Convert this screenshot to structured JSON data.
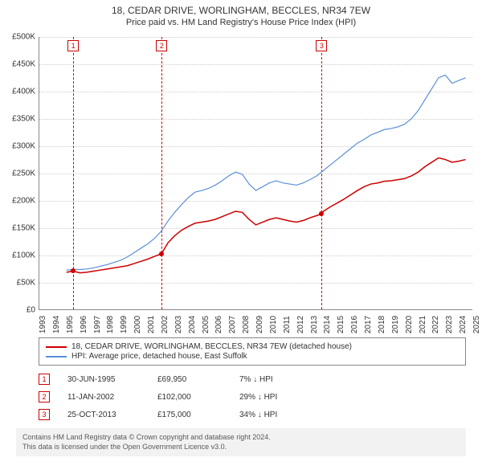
{
  "title": "18, CEDAR DRIVE, WORLINGHAM, BECCLES, NR34 7EW",
  "subtitle": "Price paid vs. HM Land Registry's House Price Index (HPI)",
  "chart": {
    "type": "line",
    "background_color": "#ffffff",
    "grid_color": "#cccccc",
    "axis_color": "#888888",
    "ylabel_prefix": "£",
    "ylim": [
      0,
      500000
    ],
    "ytick_step": 50000,
    "yticks": [
      "£0",
      "£50K",
      "£100K",
      "£150K",
      "£200K",
      "£250K",
      "£300K",
      "£350K",
      "£400K",
      "£450K",
      "£500K"
    ],
    "xlim": [
      1993,
      2025
    ],
    "xticks": [
      1993,
      1994,
      1995,
      1996,
      1997,
      1998,
      1999,
      2000,
      2001,
      2002,
      2003,
      2004,
      2005,
      2006,
      2007,
      2008,
      2009,
      2010,
      2011,
      2012,
      2013,
      2014,
      2015,
      2016,
      2017,
      2018,
      2019,
      2020,
      2021,
      2022,
      2023,
      2024,
      2025
    ],
    "series": [
      {
        "id": "price_paid",
        "label": "18, CEDAR DRIVE, WORLINGHAM, BECCLES, NR34 7EW (detached house)",
        "color": "#cc0000",
        "line_width": 1.5,
        "marker_color": "#cc0000",
        "marker_size": 6,
        "event_points": [
          {
            "x": 1995.5,
            "y": 69950
          },
          {
            "x": 2002.03,
            "y": 102000
          },
          {
            "x": 2013.82,
            "y": 175000
          }
        ],
        "points": [
          {
            "x": 1995.0,
            "y": 68000
          },
          {
            "x": 1995.5,
            "y": 69950
          },
          {
            "x": 1996.0,
            "y": 67000
          },
          {
            "x": 1996.5,
            "y": 68000
          },
          {
            "x": 1997.0,
            "y": 70000
          },
          {
            "x": 1997.5,
            "y": 72000
          },
          {
            "x": 1998.0,
            "y": 74000
          },
          {
            "x": 1998.5,
            "y": 76000
          },
          {
            "x": 1999.0,
            "y": 78000
          },
          {
            "x": 1999.5,
            "y": 80000
          },
          {
            "x": 2000.0,
            "y": 84000
          },
          {
            "x": 2000.5,
            "y": 88000
          },
          {
            "x": 2001.0,
            "y": 92000
          },
          {
            "x": 2001.5,
            "y": 97000
          },
          {
            "x": 2002.03,
            "y": 102000
          },
          {
            "x": 2002.5,
            "y": 122000
          },
          {
            "x": 2003.0,
            "y": 135000
          },
          {
            "x": 2003.5,
            "y": 145000
          },
          {
            "x": 2004.0,
            "y": 152000
          },
          {
            "x": 2004.5,
            "y": 158000
          },
          {
            "x": 2005.0,
            "y": 160000
          },
          {
            "x": 2005.5,
            "y": 162000
          },
          {
            "x": 2006.0,
            "y": 165000
          },
          {
            "x": 2006.5,
            "y": 170000
          },
          {
            "x": 2007.0,
            "y": 175000
          },
          {
            "x": 2007.5,
            "y": 180000
          },
          {
            "x": 2008.0,
            "y": 178000
          },
          {
            "x": 2008.5,
            "y": 165000
          },
          {
            "x": 2009.0,
            "y": 155000
          },
          {
            "x": 2009.5,
            "y": 160000
          },
          {
            "x": 2010.0,
            "y": 165000
          },
          {
            "x": 2010.5,
            "y": 168000
          },
          {
            "x": 2011.0,
            "y": 165000
          },
          {
            "x": 2011.5,
            "y": 162000
          },
          {
            "x": 2012.0,
            "y": 160000
          },
          {
            "x": 2012.5,
            "y": 163000
          },
          {
            "x": 2013.0,
            "y": 168000
          },
          {
            "x": 2013.5,
            "y": 172000
          },
          {
            "x": 2013.82,
            "y": 175000
          },
          {
            "x": 2014.0,
            "y": 180000
          },
          {
            "x": 2014.5,
            "y": 188000
          },
          {
            "x": 2015.0,
            "y": 195000
          },
          {
            "x": 2015.5,
            "y": 202000
          },
          {
            "x": 2016.0,
            "y": 210000
          },
          {
            "x": 2016.5,
            "y": 218000
          },
          {
            "x": 2017.0,
            "y": 225000
          },
          {
            "x": 2017.5,
            "y": 230000
          },
          {
            "x": 2018.0,
            "y": 232000
          },
          {
            "x": 2018.5,
            "y": 235000
          },
          {
            "x": 2019.0,
            "y": 236000
          },
          {
            "x": 2019.5,
            "y": 238000
          },
          {
            "x": 2020.0,
            "y": 240000
          },
          {
            "x": 2020.5,
            "y": 245000
          },
          {
            "x": 2021.0,
            "y": 252000
          },
          {
            "x": 2021.5,
            "y": 262000
          },
          {
            "x": 2022.0,
            "y": 270000
          },
          {
            "x": 2022.5,
            "y": 278000
          },
          {
            "x": 2023.0,
            "y": 275000
          },
          {
            "x": 2023.5,
            "y": 270000
          },
          {
            "x": 2024.0,
            "y": 272000
          },
          {
            "x": 2024.5,
            "y": 275000
          }
        ]
      },
      {
        "id": "hpi",
        "label": "HPI: Average price, detached house, East Suffolk",
        "color": "#5b8fd6",
        "line_width": 1.2,
        "points": [
          {
            "x": 1995.0,
            "y": 72000
          },
          {
            "x": 1995.5,
            "y": 73000
          },
          {
            "x": 1996.0,
            "y": 73000
          },
          {
            "x": 1996.5,
            "y": 74000
          },
          {
            "x": 1997.0,
            "y": 76000
          },
          {
            "x": 1997.5,
            "y": 79000
          },
          {
            "x": 1998.0,
            "y": 82000
          },
          {
            "x": 1998.5,
            "y": 86000
          },
          {
            "x": 1999.0,
            "y": 90000
          },
          {
            "x": 1999.5,
            "y": 96000
          },
          {
            "x": 2000.0,
            "y": 104000
          },
          {
            "x": 2000.5,
            "y": 112000
          },
          {
            "x": 2001.0,
            "y": 120000
          },
          {
            "x": 2001.5,
            "y": 130000
          },
          {
            "x": 2002.0,
            "y": 143000
          },
          {
            "x": 2002.5,
            "y": 162000
          },
          {
            "x": 2003.0,
            "y": 178000
          },
          {
            "x": 2003.5,
            "y": 192000
          },
          {
            "x": 2004.0,
            "y": 205000
          },
          {
            "x": 2004.5,
            "y": 215000
          },
          {
            "x": 2005.0,
            "y": 218000
          },
          {
            "x": 2005.5,
            "y": 222000
          },
          {
            "x": 2006.0,
            "y": 228000
          },
          {
            "x": 2006.5,
            "y": 236000
          },
          {
            "x": 2007.0,
            "y": 245000
          },
          {
            "x": 2007.5,
            "y": 252000
          },
          {
            "x": 2008.0,
            "y": 248000
          },
          {
            "x": 2008.5,
            "y": 230000
          },
          {
            "x": 2009.0,
            "y": 218000
          },
          {
            "x": 2009.5,
            "y": 225000
          },
          {
            "x": 2010.0,
            "y": 232000
          },
          {
            "x": 2010.5,
            "y": 236000
          },
          {
            "x": 2011.0,
            "y": 232000
          },
          {
            "x": 2011.5,
            "y": 230000
          },
          {
            "x": 2012.0,
            "y": 228000
          },
          {
            "x": 2012.5,
            "y": 232000
          },
          {
            "x": 2013.0,
            "y": 238000
          },
          {
            "x": 2013.5,
            "y": 245000
          },
          {
            "x": 2014.0,
            "y": 255000
          },
          {
            "x": 2014.5,
            "y": 265000
          },
          {
            "x": 2015.0,
            "y": 275000
          },
          {
            "x": 2015.5,
            "y": 285000
          },
          {
            "x": 2016.0,
            "y": 295000
          },
          {
            "x": 2016.5,
            "y": 305000
          },
          {
            "x": 2017.0,
            "y": 312000
          },
          {
            "x": 2017.5,
            "y": 320000
          },
          {
            "x": 2018.0,
            "y": 325000
          },
          {
            "x": 2018.5,
            "y": 330000
          },
          {
            "x": 2019.0,
            "y": 332000
          },
          {
            "x": 2019.5,
            "y": 335000
          },
          {
            "x": 2020.0,
            "y": 340000
          },
          {
            "x": 2020.5,
            "y": 350000
          },
          {
            "x": 2021.0,
            "y": 365000
          },
          {
            "x": 2021.5,
            "y": 385000
          },
          {
            "x": 2022.0,
            "y": 405000
          },
          {
            "x": 2022.5,
            "y": 425000
          },
          {
            "x": 2023.0,
            "y": 430000
          },
          {
            "x": 2023.5,
            "y": 415000
          },
          {
            "x": 2024.0,
            "y": 420000
          },
          {
            "x": 2024.5,
            "y": 425000
          }
        ]
      }
    ],
    "event_markers": [
      {
        "n": "1",
        "x": 1995.5
      },
      {
        "n": "2",
        "x": 2002.03
      },
      {
        "n": "3",
        "x": 2013.82
      }
    ]
  },
  "legend": {
    "rows": [
      {
        "color": "#cc0000",
        "label": "18, CEDAR DRIVE, WORLINGHAM, BECCLES, NR34 7EW (detached house)"
      },
      {
        "color": "#5b8fd6",
        "label": "HPI: Average price, detached house, East Suffolk"
      }
    ]
  },
  "events": [
    {
      "n": "1",
      "date": "30-JUN-1995",
      "price": "£69,950",
      "delta": "7% ↓ HPI"
    },
    {
      "n": "2",
      "date": "11-JAN-2002",
      "price": "£102,000",
      "delta": "29% ↓ HPI"
    },
    {
      "n": "3",
      "date": "25-OCT-2013",
      "price": "£175,000",
      "delta": "34% ↓ HPI"
    }
  ],
  "footer": {
    "line1": "Contains HM Land Registry data © Crown copyright and database right 2024.",
    "line2": "This data is licensed under the Open Government Licence v3.0."
  }
}
